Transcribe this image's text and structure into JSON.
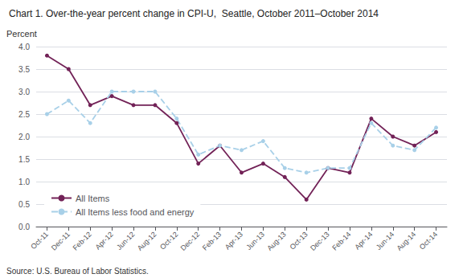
{
  "chart_data": {
    "type": "line",
    "title": "Chart 1. Over-the-year percent change in CPI-U,  Seattle, October 2011–October 2014",
    "ylabel": "Percent",
    "annotations": [
      "Source: U.S. Bureau of Labor Statistics."
    ],
    "categories": [
      "Oct-11",
      "Dec-11",
      "Feb-12",
      "Apr-12",
      "Jun-12",
      "Aug-12",
      "Oct-12",
      "Dec-12",
      "Feb-13",
      "Apr-13",
      "Jun-13",
      "Aug-13",
      "Oct-13",
      "Dec-13",
      "Feb-14",
      "Apr-14",
      "Jun-14",
      "Aug-14",
      "Oct-14"
    ],
    "series": [
      {
        "name": "All Items",
        "color": "#722257",
        "marker": "circle",
        "line_style": "solid",
        "values": [
          3.8,
          3.5,
          2.7,
          2.9,
          2.7,
          2.7,
          2.3,
          1.4,
          1.8,
          1.2,
          1.4,
          1.1,
          0.6,
          1.3,
          1.2,
          2.4,
          2.0,
          1.8,
          2.1
        ]
      },
      {
        "name": "All Items less food and energy",
        "color": "#a8d0e8",
        "marker": "circle",
        "line_style": "dashed",
        "values": [
          2.5,
          2.8,
          2.3,
          3.0,
          3.0,
          3.0,
          2.4,
          1.6,
          1.8,
          1.7,
          1.9,
          1.3,
          1.2,
          1.3,
          1.3,
          2.3,
          1.8,
          1.7,
          2.2
        ]
      }
    ],
    "ylim": [
      0.0,
      4.0
    ],
    "yticks": [
      {
        "value": 0.0,
        "label": "0.0"
      },
      0.5,
      {
        "value": 1.0,
        "label": "1.0"
      },
      1.5,
      {
        "value": 2.0,
        "label": "2.0"
      },
      2.5,
      {
        "value": 3.0,
        "label": "3.0"
      },
      3.5,
      {
        "value": 4.0,
        "label": "4.0"
      }
    ],
    "grid": true,
    "legend": "lower left"
  }
}
